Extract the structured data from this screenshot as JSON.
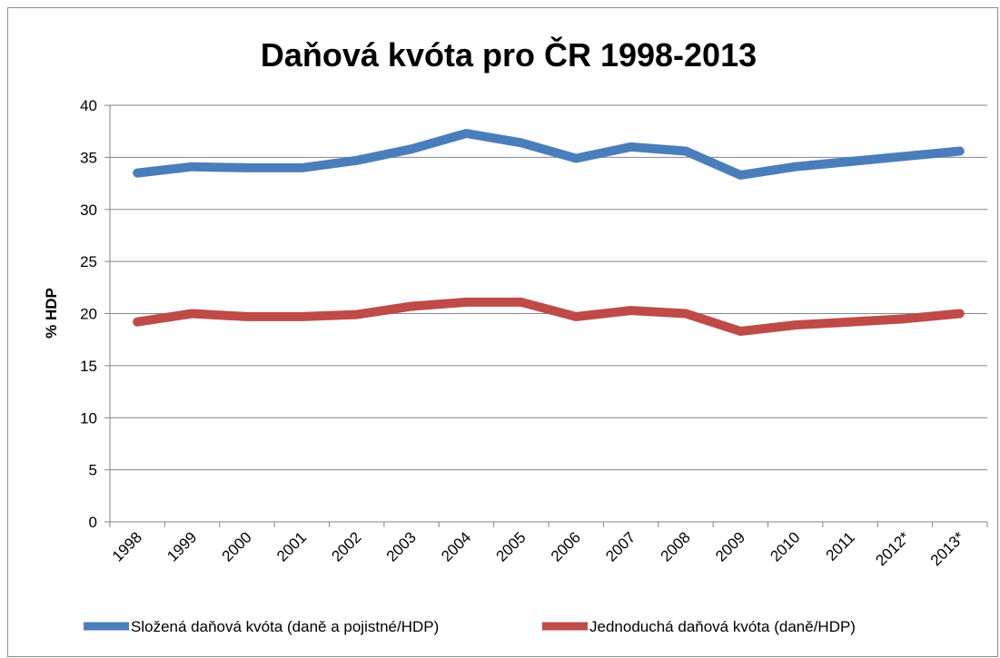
{
  "chart_data": {
    "type": "line",
    "title": "Daňová kvóta pro ČR 1998-2013",
    "xlabel": "",
    "ylabel": "% HDP",
    "ylim": [
      0,
      40
    ],
    "yticks": [
      0,
      5,
      10,
      15,
      20,
      25,
      30,
      35,
      40
    ],
    "grid": true,
    "legend_position": "bottom",
    "categories": [
      "1998",
      "1999",
      "2000",
      "2001",
      "2002",
      "2003",
      "2004",
      "2005",
      "2006",
      "2007",
      "2008",
      "2009",
      "2010",
      "2011",
      "2012*",
      "2013*"
    ],
    "series": [
      {
        "name": "Složená daňová kvóta (daně a pojistné/HDP)",
        "color": "#4a7ebb",
        "values": [
          33.5,
          34.1,
          34.0,
          34.0,
          34.7,
          35.8,
          37.3,
          36.4,
          34.9,
          36.0,
          35.6,
          33.3,
          34.1,
          34.6,
          35.1,
          35.6
        ]
      },
      {
        "name": "Jednoduchá daňová kvóta (daně/HDP)",
        "color": "#be4b48",
        "values": [
          19.2,
          20.0,
          19.7,
          19.7,
          19.9,
          20.7,
          21.1,
          21.1,
          19.7,
          20.3,
          20.0,
          18.3,
          18.9,
          19.2,
          19.5,
          20.0
        ]
      }
    ]
  }
}
